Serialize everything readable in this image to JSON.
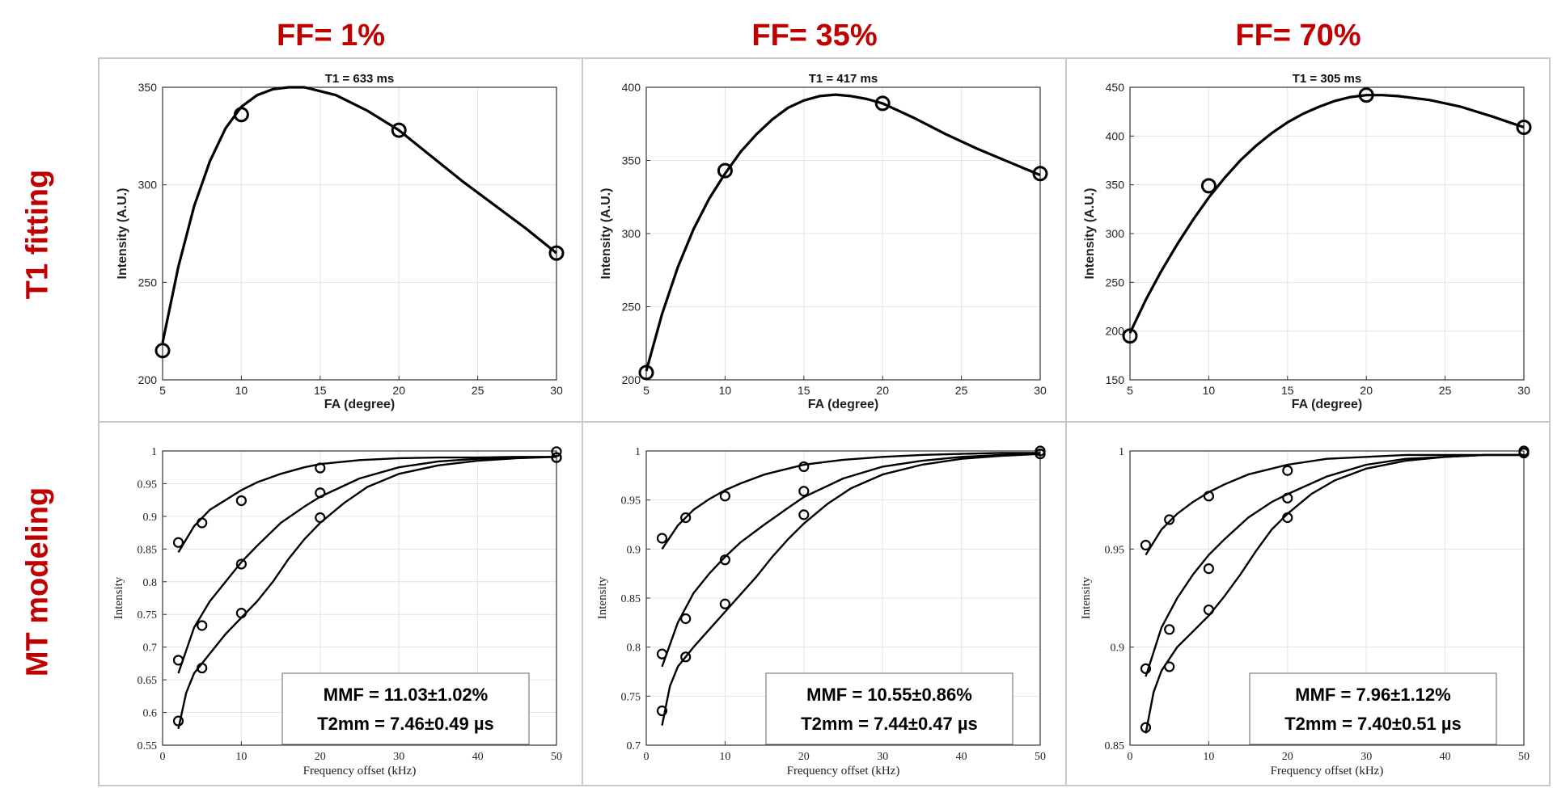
{
  "column_headers": [
    "FF= 1%",
    "FF= 35%",
    "FF= 70%"
  ],
  "row_headers": [
    "T1 fitting",
    "MT modeling"
  ],
  "chart_data": [
    {
      "id": "t1-ff1",
      "type": "line",
      "title": "T1 = 633 ms",
      "xlabel": "FA (degree)",
      "ylabel": "Intensity (A.U.)",
      "xlim": [
        5,
        30
      ],
      "ylim": [
        200,
        350
      ],
      "xticks": [
        5,
        10,
        15,
        20,
        25,
        30
      ],
      "yticks": [
        200,
        250,
        300,
        350
      ],
      "points": {
        "x": [
          5,
          10,
          20,
          30
        ],
        "y": [
          215,
          336,
          328,
          265
        ]
      },
      "fit_curve": {
        "x": [
          5,
          6,
          7,
          8,
          9,
          10,
          11,
          12,
          13,
          14,
          15,
          16,
          18,
          20,
          22,
          24,
          26,
          28,
          30
        ],
        "y": [
          219,
          258,
          289,
          312,
          329,
          340,
          346,
          349,
          350,
          350,
          348,
          346,
          338,
          328,
          315,
          302,
          290,
          278,
          265
        ]
      }
    },
    {
      "id": "t1-ff35",
      "type": "line",
      "title": "T1 = 417 ms",
      "xlabel": "FA (degree)",
      "ylabel": "Intensity (A.U.)",
      "xlim": [
        5,
        30
      ],
      "ylim": [
        200,
        400
      ],
      "xticks": [
        5,
        10,
        15,
        20,
        25,
        30
      ],
      "yticks": [
        200,
        250,
        300,
        350,
        400
      ],
      "points": {
        "x": [
          5,
          10,
          20,
          30
        ],
        "y": [
          205,
          343,
          389,
          341
        ]
      },
      "fit_curve": {
        "x": [
          5,
          6,
          7,
          8,
          9,
          10,
          11,
          12,
          13,
          14,
          15,
          16,
          17,
          18,
          19,
          20,
          22,
          24,
          26,
          28,
          30
        ],
        "y": [
          206,
          245,
          277,
          303,
          324,
          341,
          356,
          368,
          378,
          386,
          391,
          394,
          395,
          394,
          392,
          389,
          379,
          368,
          358,
          349,
          340
        ]
      }
    },
    {
      "id": "t1-ff70",
      "type": "line",
      "title": "T1 = 305 ms",
      "xlabel": "FA (degree)",
      "ylabel": "Intensity (A.U.)",
      "xlim": [
        5,
        30
      ],
      "ylim": [
        150,
        450
      ],
      "xticks": [
        5,
        10,
        15,
        20,
        25,
        30
      ],
      "yticks": [
        150,
        200,
        250,
        300,
        350,
        400,
        450
      ],
      "points": {
        "x": [
          5,
          10,
          20,
          30
        ],
        "y": [
          195,
          349,
          442,
          409
        ]
      },
      "fit_curve": {
        "x": [
          5,
          6,
          7,
          8,
          9,
          10,
          11,
          12,
          13,
          14,
          15,
          16,
          17,
          18,
          19,
          20,
          21,
          22,
          24,
          26,
          28,
          30
        ],
        "y": [
          198,
          232,
          262,
          289,
          314,
          337,
          357,
          375,
          390,
          403,
          414,
          423,
          430,
          436,
          440,
          442,
          442,
          441,
          437,
          430,
          420,
          409
        ]
      }
    },
    {
      "id": "mt-ff1",
      "type": "scatter",
      "xlabel": "Frequency offset (kHz)",
      "ylabel": "Intensity",
      "xlim": [
        0,
        50
      ],
      "ylim": [
        0.55,
        1
      ],
      "xticks": [
        0,
        10,
        20,
        30,
        40,
        50
      ],
      "yticks": [
        0.55,
        0.6,
        0.65,
        0.7,
        0.75,
        0.8,
        0.85,
        0.9,
        0.95,
        1
      ],
      "series": [
        {
          "name": "series-1",
          "x": [
            2,
            5,
            10,
            20,
            50
          ],
          "y": [
            0.86,
            0.89,
            0.924,
            0.974,
            0.999
          ],
          "fit": {
            "x": [
              2,
              4,
              6,
              8,
              10,
              12,
              15,
              18,
              20,
              25,
              30,
              35,
              40,
              45,
              50
            ],
            "y": [
              0.845,
              0.885,
              0.91,
              0.925,
              0.94,
              0.952,
              0.965,
              0.975,
              0.98,
              0.986,
              0.989,
              0.99,
              0.99,
              0.991,
              0.991
            ]
          }
        },
        {
          "name": "series-2",
          "x": [
            2,
            5,
            10,
            20,
            50
          ],
          "y": [
            0.68,
            0.733,
            0.827,
            0.936,
            0.99
          ],
          "fit": {
            "x": [
              2,
              4,
              6,
              8,
              10,
              12,
              15,
              18,
              20,
              25,
              30,
              35,
              40,
              45,
              50
            ],
            "y": [
              0.66,
              0.73,
              0.77,
              0.8,
              0.83,
              0.855,
              0.89,
              0.915,
              0.93,
              0.958,
              0.975,
              0.984,
              0.988,
              0.99,
              0.991
            ]
          }
        },
        {
          "name": "series-3",
          "x": [
            2,
            5,
            10,
            20,
            50
          ],
          "y": [
            0.587,
            0.668,
            0.752,
            0.898,
            0.99
          ],
          "fit": {
            "x": [
              2,
              3,
              4,
              6,
              8,
              10,
              12,
              14,
              16,
              18,
              20,
              23,
              26,
              30,
              35,
              40,
              45,
              50
            ],
            "y": [
              0.575,
              0.63,
              0.66,
              0.69,
              0.72,
              0.745,
              0.77,
              0.8,
              0.835,
              0.865,
              0.89,
              0.92,
              0.945,
              0.965,
              0.978,
              0.985,
              0.989,
              0.991
            ]
          }
        }
      ],
      "annotation": {
        "line1": "MMF = 11.03±1.02%",
        "line2": "T2mm = 7.46±0.49 µs"
      }
    },
    {
      "id": "mt-ff35",
      "type": "scatter",
      "xlabel": "Frequency offset (kHz)",
      "ylabel": "Intensity",
      "xlim": [
        0,
        50
      ],
      "ylim": [
        0.7,
        1
      ],
      "xticks": [
        0,
        10,
        20,
        30,
        40,
        50
      ],
      "yticks": [
        0.7,
        0.75,
        0.8,
        0.85,
        0.9,
        0.95,
        1
      ],
      "series": [
        {
          "name": "series-1",
          "x": [
            2,
            5,
            10,
            20,
            50
          ],
          "y": [
            0.911,
            0.932,
            0.954,
            0.984,
            1.0
          ],
          "fit": {
            "x": [
              2,
              4,
              6,
              8,
              10,
              12,
              15,
              18,
              20,
              25,
              30,
              35,
              40,
              45,
              50
            ],
            "y": [
              0.9,
              0.924,
              0.94,
              0.951,
              0.96,
              0.967,
              0.976,
              0.982,
              0.986,
              0.991,
              0.994,
              0.996,
              0.997,
              0.998,
              0.998
            ]
          }
        },
        {
          "name": "series-2",
          "x": [
            2,
            5,
            10,
            20,
            50
          ],
          "y": [
            0.793,
            0.829,
            0.889,
            0.959,
            0.997
          ],
          "fit": {
            "x": [
              2,
              4,
              6,
              8,
              10,
              12,
              15,
              18,
              20,
              25,
              30,
              35,
              40,
              45,
              50
            ],
            "y": [
              0.78,
              0.825,
              0.855,
              0.875,
              0.892,
              0.907,
              0.925,
              0.942,
              0.953,
              0.972,
              0.984,
              0.99,
              0.994,
              0.996,
              0.997
            ]
          }
        },
        {
          "name": "series-3",
          "x": [
            2,
            5,
            10,
            20,
            50
          ],
          "y": [
            0.735,
            0.79,
            0.844,
            0.935,
            0.997
          ],
          "fit": {
            "x": [
              2,
              3,
              4,
              6,
              8,
              10,
              12,
              14,
              16,
              18,
              20,
              23,
              26,
              30,
              35,
              40,
              45,
              50
            ],
            "y": [
              0.72,
              0.76,
              0.78,
              0.8,
              0.818,
              0.836,
              0.854,
              0.872,
              0.892,
              0.91,
              0.926,
              0.946,
              0.962,
              0.976,
              0.986,
              0.992,
              0.995,
              0.997
            ]
          }
        }
      ],
      "annotation": {
        "line1": "MMF = 10.55±0.86%",
        "line2": "T2mm = 7.44±0.47 µs"
      }
    },
    {
      "id": "mt-ff70",
      "type": "scatter",
      "xlabel": "Frequency offset (kHz)",
      "ylabel": "Intensity",
      "xlim": [
        0,
        50
      ],
      "ylim": [
        0.85,
        1
      ],
      "xticks": [
        0,
        10,
        20,
        30,
        40,
        50
      ],
      "yticks": [
        0.85,
        0.9,
        0.95,
        1
      ],
      "series": [
        {
          "name": "series-1",
          "x": [
            2,
            5,
            10,
            20,
            50
          ],
          "y": [
            0.952,
            0.965,
            0.977,
            0.99,
            1.0
          ],
          "fit": {
            "x": [
              2,
              4,
              6,
              8,
              10,
              12,
              15,
              18,
              20,
              25,
              30,
              35,
              40,
              45,
              50
            ],
            "y": [
              0.947,
              0.96,
              0.968,
              0.974,
              0.979,
              0.983,
              0.988,
              0.991,
              0.993,
              0.996,
              0.997,
              0.998,
              0.998,
              0.998,
              0.998
            ]
          }
        },
        {
          "name": "series-2",
          "x": [
            2,
            5,
            10,
            20,
            50
          ],
          "y": [
            0.889,
            0.909,
            0.94,
            0.976,
            0.999
          ],
          "fit": {
            "x": [
              2,
              4,
              6,
              8,
              10,
              12,
              15,
              18,
              20,
              25,
              30,
              35,
              40,
              45,
              50
            ],
            "y": [
              0.885,
              0.91,
              0.925,
              0.937,
              0.947,
              0.955,
              0.966,
              0.974,
              0.978,
              0.987,
              0.993,
              0.996,
              0.997,
              0.998,
              0.998
            ]
          }
        },
        {
          "name": "series-3",
          "x": [
            2,
            5,
            10,
            20,
            50
          ],
          "y": [
            0.859,
            0.89,
            0.919,
            0.966,
            0.999
          ],
          "fit": {
            "x": [
              2,
              3,
              4,
              6,
              8,
              10,
              12,
              14,
              16,
              18,
              20,
              23,
              26,
              30,
              35,
              40,
              45,
              50
            ],
            "y": [
              0.856,
              0.877,
              0.888,
              0.9,
              0.908,
              0.916,
              0.926,
              0.937,
              0.949,
              0.96,
              0.968,
              0.978,
              0.985,
              0.991,
              0.995,
              0.997,
              0.998,
              0.998
            ]
          }
        }
      ],
      "annotation": {
        "line1": "MMF = 7.96±1.12%",
        "line2": "T2mm = 7.40±0.51 µs"
      }
    }
  ]
}
